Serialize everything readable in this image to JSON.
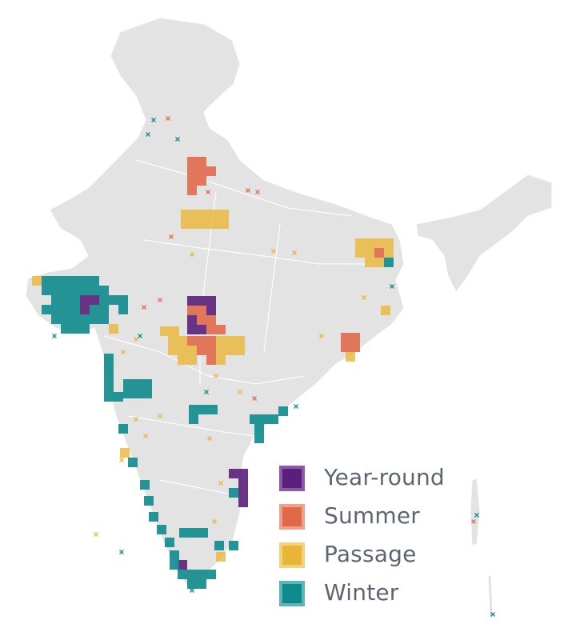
{
  "legend": {
    "items": [
      {
        "key": "year_round",
        "label": "Year-round",
        "color": "#5a1f7a",
        "border": "#8a5aa6"
      },
      {
        "key": "summer",
        "label": "Summer",
        "color": "#e1694a",
        "border": "#eea08a"
      },
      {
        "key": "passage",
        "label": "Passage",
        "color": "#e9b536",
        "border": "#f2d27f"
      },
      {
        "key": "winter",
        "label": "Winter",
        "color": "#0d8a8c",
        "border": "#5fb5b6"
      }
    ]
  },
  "map": {
    "base_color": "#e3e3e3",
    "border_color": "#ffffff"
  }
}
